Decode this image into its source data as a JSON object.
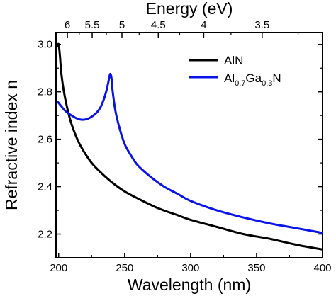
{
  "chart_data": {
    "type": "line",
    "xlabel": "Wavelength (nm)",
    "ylabel": "Refractive index n",
    "top_xlabel": "Energy (eV)",
    "xlim": [
      198,
      400
    ],
    "ylim": [
      2.1,
      3.05
    ],
    "x_ticks": [
      200,
      250,
      300,
      350,
      400
    ],
    "x_tick_labels": [
      "200",
      "250",
      "300",
      "350",
      "400"
    ],
    "y_ticks": [
      2.2,
      2.4,
      2.6,
      2.8,
      3.0
    ],
    "y_tick_labels": [
      "2.2",
      "2.4",
      "2.6",
      "2.8",
      "3.0"
    ],
    "top_ticks_ev": [
      6,
      5.5,
      5,
      4.5,
      4,
      3.5
    ],
    "top_tick_labels": [
      "6",
      "5.5",
      "5",
      "4.5",
      "4",
      "3.5"
    ],
    "legend_position": "top-right",
    "series": [
      {
        "name": "AlN",
        "color": "#000000",
        "x": [
          199,
          200,
          201,
          202,
          204,
          207,
          210,
          215,
          220,
          225,
          230,
          240,
          250,
          260,
          275,
          290,
          300,
          320,
          340,
          360,
          380,
          400
        ],
        "y": [
          2.99,
          3.0,
          2.95,
          2.88,
          2.8,
          2.72,
          2.66,
          2.59,
          2.54,
          2.5,
          2.47,
          2.42,
          2.38,
          2.35,
          2.31,
          2.28,
          2.26,
          2.23,
          2.2,
          2.18,
          2.155,
          2.135
        ]
      },
      {
        "name": "Al0.7Ga0.3N",
        "legend_parts": [
          "Al",
          "0.7",
          "Ga",
          "0.3",
          "N"
        ],
        "color": "#0a14e6",
        "x": [
          199,
          205,
          210,
          215,
          220,
          225,
          230,
          233,
          236,
          238,
          239,
          240,
          241,
          243,
          246,
          250,
          255,
          260,
          270,
          280,
          290,
          300,
          320,
          340,
          360,
          380,
          400
        ],
        "y": [
          2.76,
          2.72,
          2.7,
          2.685,
          2.683,
          2.695,
          2.72,
          2.75,
          2.8,
          2.85,
          2.875,
          2.86,
          2.8,
          2.72,
          2.65,
          2.58,
          2.53,
          2.49,
          2.44,
          2.4,
          2.37,
          2.34,
          2.3,
          2.27,
          2.245,
          2.225,
          2.205
        ]
      }
    ]
  }
}
